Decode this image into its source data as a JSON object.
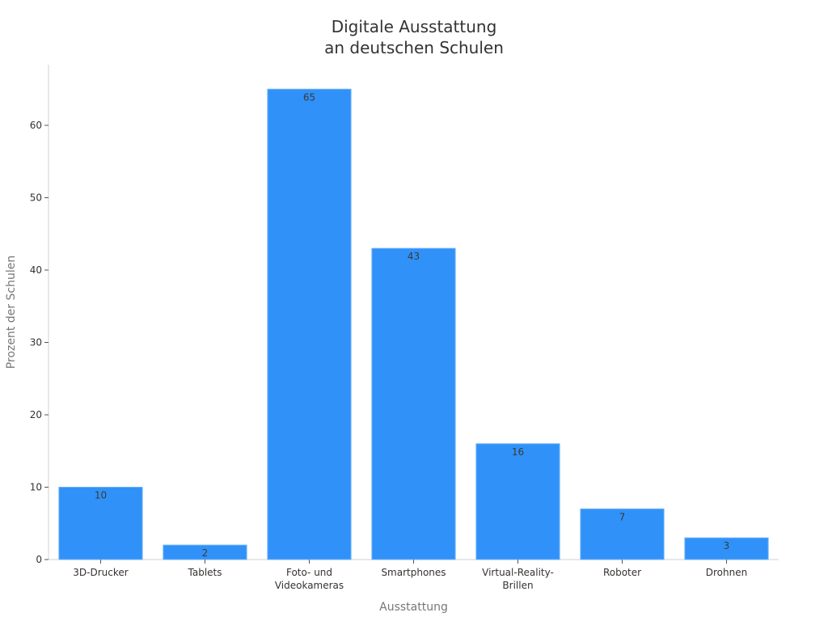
{
  "chart_data": {
    "type": "bar",
    "title": "Digitale Ausstattung an deutschen Schulen",
    "title_lines": [
      "Digitale Ausstattung",
      "an deutschen Schulen"
    ],
    "xlabel": "Ausstattung",
    "ylabel": "Prozent der Schulen",
    "categories": [
      "3D-Drucker",
      "Tablets",
      "Foto- und Videokameras",
      "Smartphones",
      "Virtual-Reality-Brillen",
      "Roboter",
      "Drohnen"
    ],
    "category_lines": [
      [
        "3D-Drucker"
      ],
      [
        "Tablets"
      ],
      [
        "Foto- und",
        "Videokameras"
      ],
      [
        "Smartphones"
      ],
      [
        "Virtual-Reality-",
        "Brillen"
      ],
      [
        "Roboter"
      ],
      [
        "Drohnen"
      ]
    ],
    "values": [
      10,
      2,
      65,
      43,
      16,
      7,
      3
    ],
    "yticks": [
      0,
      10,
      20,
      30,
      40,
      50,
      60
    ],
    "ylim": [
      0,
      68
    ],
    "grid": false,
    "legend": null,
    "bar_color": "#3092f8",
    "data_labels": true
  }
}
